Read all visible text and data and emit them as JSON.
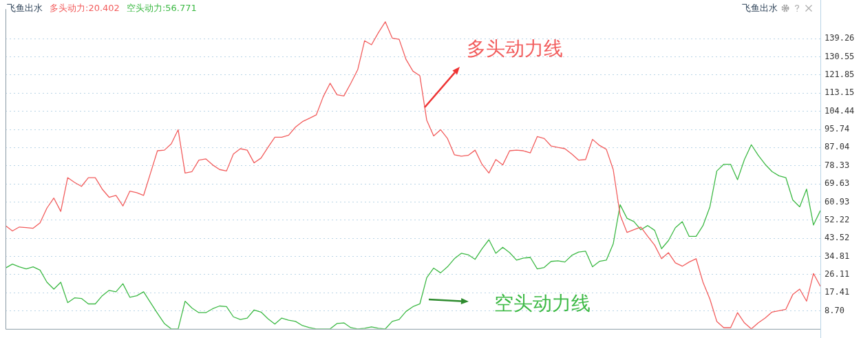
{
  "chart_data": {
    "type": "line",
    "title": "飞鱼出水",
    "grid": "y",
    "marker": "none",
    "line_style": "solid",
    "tick_labels": "y",
    "categories": [
      null,
      null,
      null,
      null,
      null,
      null,
      null,
      null,
      null,
      null,
      null,
      null,
      null,
      null,
      null,
      null,
      null,
      null,
      null,
      null,
      null,
      null,
      null,
      null,
      null,
      null,
      null,
      null,
      null,
      null,
      null,
      null,
      null,
      null,
      null,
      null,
      null,
      null,
      null,
      null,
      null,
      null,
      null,
      null,
      null,
      null,
      null,
      null,
      null,
      null,
      null,
      null,
      null,
      null,
      null,
      null,
      null,
      null,
      null,
      null,
      null,
      null,
      null,
      null,
      null,
      null,
      null,
      null,
      null,
      null,
      null,
      null,
      null,
      null,
      null,
      null,
      null,
      null,
      null,
      null,
      null,
      null,
      null,
      null,
      null,
      null,
      null,
      null,
      null,
      null,
      null,
      null,
      null,
      null,
      null,
      null,
      null,
      null,
      null,
      null,
      null,
      null,
      null,
      null,
      null,
      null,
      null,
      null,
      null,
      null,
      null,
      null,
      null,
      null,
      null,
      null,
      null,
      null,
      null
    ],
    "series": [
      {
        "name": "多头动力:20.402",
        "color": "#f25c5c",
        "values": [
          49.6,
          47.0,
          48.9,
          48.6,
          48.3,
          50.9,
          58.0,
          62.8,
          56.4,
          72.6,
          70.3,
          68.4,
          72.6,
          72.6,
          67.1,
          63.2,
          64.1,
          59.0,
          66.1,
          65.4,
          64.1,
          74.8,
          85.5,
          85.8,
          88.8,
          95.6,
          74.8,
          75.5,
          81.0,
          81.6,
          78.7,
          76.5,
          75.8,
          83.9,
          86.5,
          85.8,
          79.7,
          82.0,
          87.1,
          92.0,
          92.0,
          93.0,
          96.9,
          99.5,
          101.1,
          102.7,
          111.4,
          117.9,
          112.4,
          111.8,
          117.9,
          124.4,
          138.3,
          136.4,
          142.2,
          147.4,
          139.6,
          139.0,
          129.3,
          123.7,
          121.5,
          100.1,
          92.6,
          95.6,
          91.4,
          83.6,
          82.9,
          83.3,
          85.8,
          79.0,
          74.8,
          81.3,
          78.7,
          85.5,
          85.8,
          85.5,
          84.5,
          92.3,
          91.4,
          87.8,
          87.1,
          86.5,
          83.9,
          81.0,
          81.3,
          91.0,
          88.1,
          86.2,
          76.5,
          54.7,
          46.3,
          47.6,
          48.9,
          44.4,
          40.2,
          33.7,
          36.6,
          31.7,
          30.1,
          32.1,
          33.7,
          22.4,
          14.3,
          3.6,
          0.6,
          0.6,
          7.8,
          2.9,
          0,
          2.9,
          5.2,
          8.1,
          8.7,
          9.4,
          16.5,
          19.1,
          13.3,
          26.6,
          20.4
        ]
      },
      {
        "name": "空头动力:56.771",
        "color": "#3cb944",
        "values": [
          29.2,
          31.1,
          29.8,
          28.8,
          29.8,
          28.2,
          22.4,
          19.1,
          22.4,
          12.6,
          14.9,
          14.6,
          12.0,
          12.0,
          15.9,
          18.5,
          17.8,
          21.7,
          15.2,
          15.9,
          17.8,
          12.6,
          7.5,
          2.6,
          0,
          0,
          13.3,
          10.0,
          7.8,
          7.8,
          9.7,
          11.0,
          10.7,
          5.8,
          4.5,
          5.2,
          9.1,
          8.1,
          4.9,
          2.3,
          5.2,
          4.2,
          3.6,
          1.6,
          0.6,
          0,
          0,
          0,
          2.6,
          2.9,
          0.6,
          0,
          0.3,
          1.0,
          0.3,
          0,
          3.6,
          4.5,
          8.4,
          10.7,
          12.0,
          24.6,
          29.2,
          26.9,
          29.8,
          33.7,
          36.3,
          35.6,
          33.4,
          38.5,
          42.8,
          36.3,
          39.2,
          36.6,
          33.0,
          34.0,
          34.3,
          28.8,
          29.5,
          32.4,
          32.7,
          32.1,
          35.3,
          36.9,
          37.3,
          29.8,
          32.4,
          33.0,
          40.8,
          59.6,
          53.1,
          51.5,
          47.6,
          49.6,
          47.3,
          38.5,
          42.4,
          48.6,
          51.5,
          44.4,
          44.4,
          49.6,
          58.6,
          75.8,
          79.0,
          79.0,
          71.6,
          81.3,
          88.4,
          83.3,
          79.0,
          75.5,
          73.5,
          72.6,
          61.9,
          58.6,
          67.1,
          49.9,
          56.8
        ]
      }
    ],
    "ylim": [
      0,
      153.5
    ],
    "yticks": [
      {
        "value": 8.7,
        "label": "8.70"
      },
      17.41,
      26.11,
      34.81,
      43.52,
      52.22,
      60.93,
      69.63,
      78.33,
      87.04,
      95.74,
      104.44,
      113.15,
      121.85,
      130.55,
      139.26
    ],
    "annotations": [
      "多头动力线",
      "空头动力线"
    ]
  }
}
